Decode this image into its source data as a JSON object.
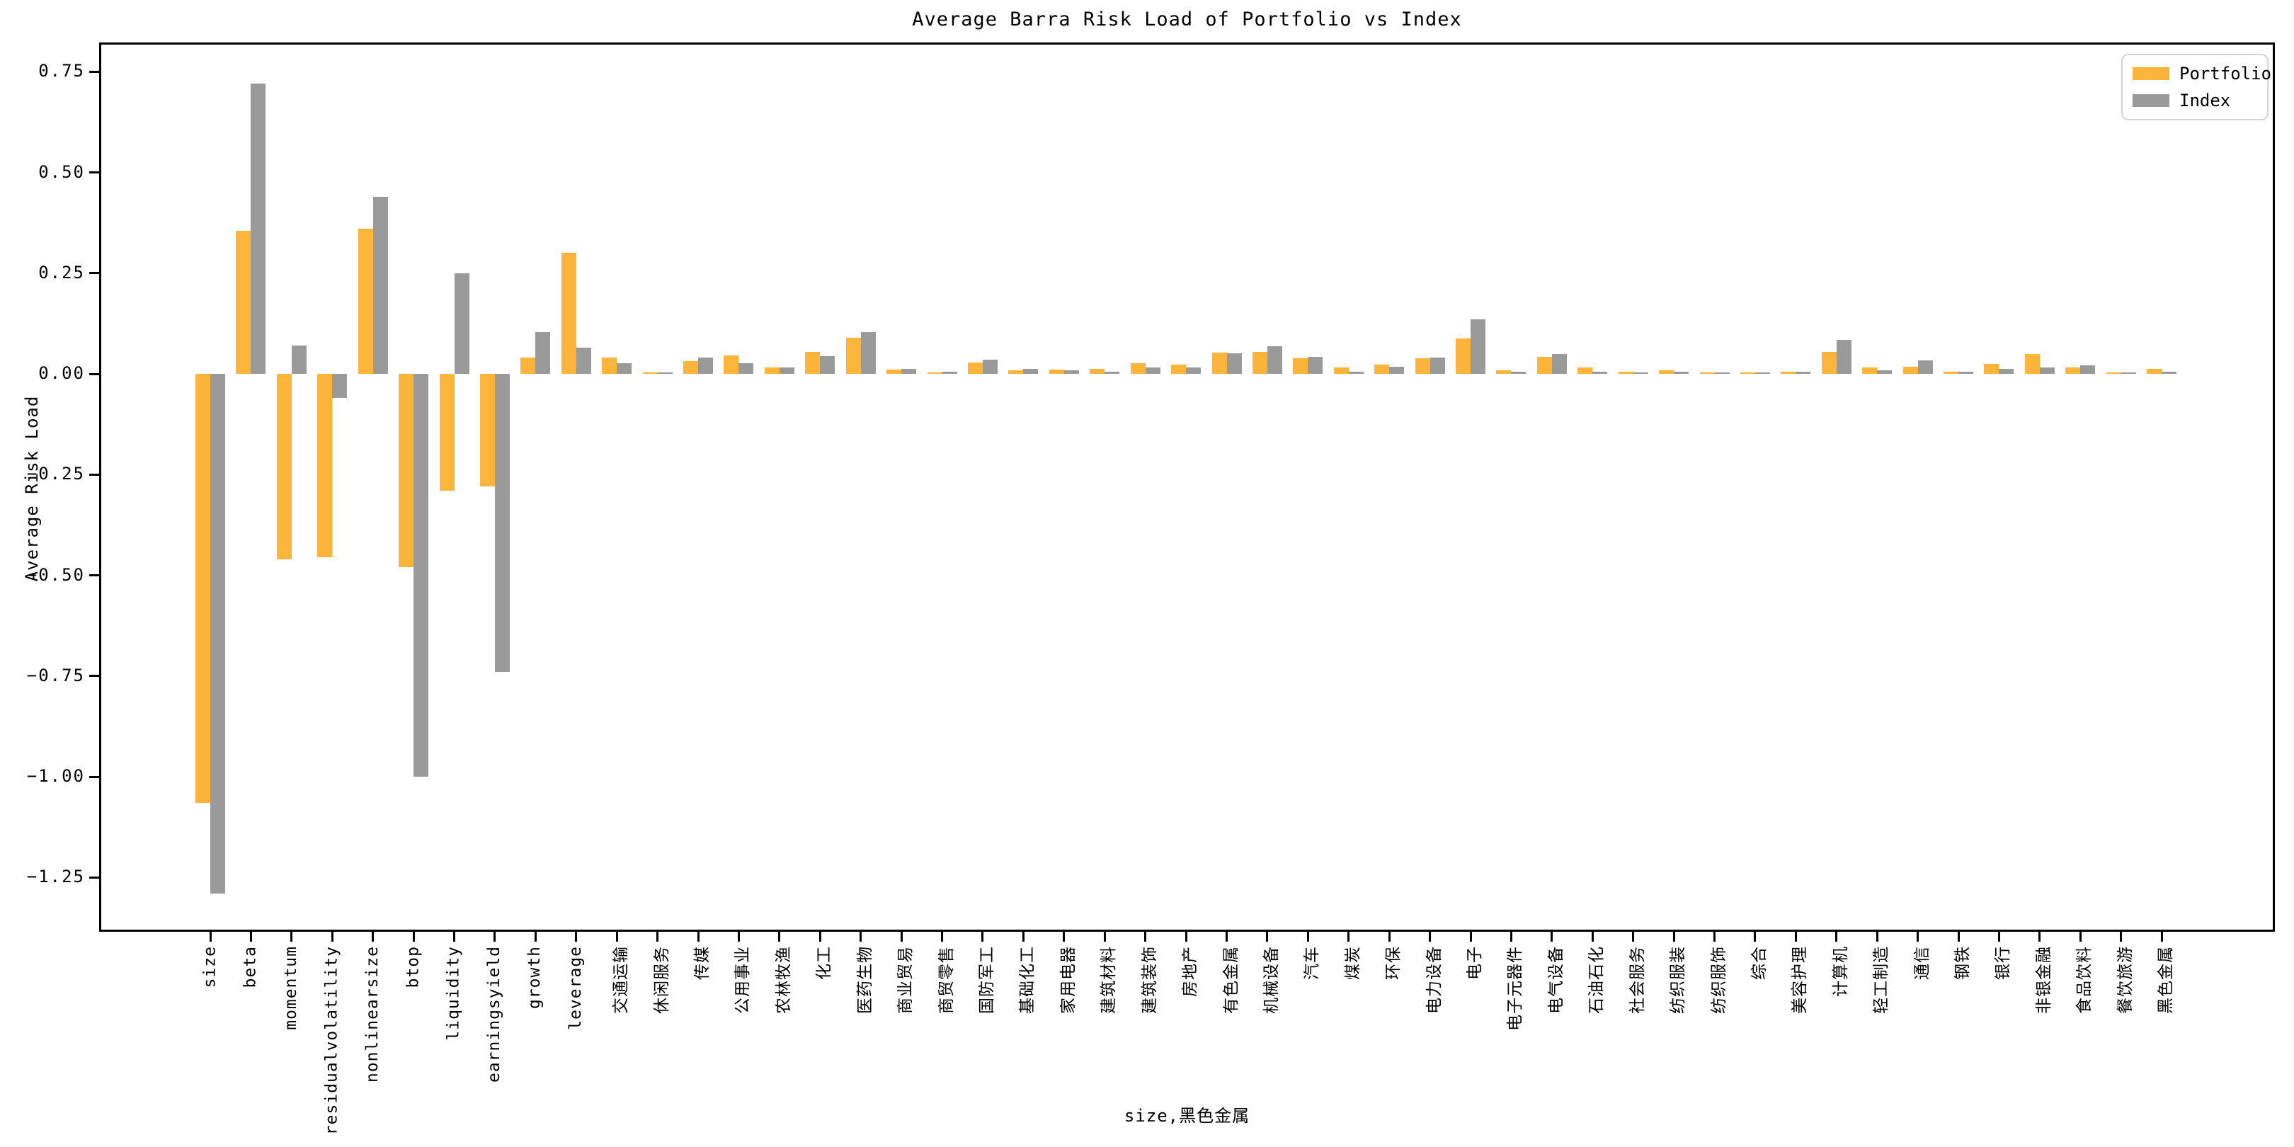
{
  "chart_data": {
    "type": "bar",
    "title": "Average Barra Risk Load of Portfolio vs Index",
    "ylabel": "Average Risk Load",
    "xlabel": "size,黑色金属",
    "grid": false,
    "legend_position": "upper right",
    "ylim": [
      -1.385,
      0.8225
    ],
    "yticks": [
      0.75,
      0.5,
      0.25,
      0.0,
      -0.25,
      -0.5,
      -0.75,
      -1.0,
      -1.25
    ],
    "ytick_labels": [
      "0.75",
      "0.50",
      "0.25",
      "0.00",
      "−0.25",
      "−0.50",
      "−0.75",
      "−1.00",
      "−1.25"
    ],
    "categories": [
      "size",
      "beta",
      "momentum",
      "residualvolatility",
      "nonlinearsize",
      "btop",
      "liquidity",
      "earningsyield",
      "growth",
      "leverage",
      "交通运输",
      "休闲服务",
      "传媒",
      "公用事业",
      "农林牧渔",
      "化工",
      "医药生物",
      "商业贸易",
      "商贸零售",
      "国防军工",
      "基础化工",
      "家用电器",
      "建筑材料",
      "建筑装饰",
      "房地产",
      "有色金属",
      "机械设备",
      "汽车",
      "煤炭",
      "环保",
      "电力设备",
      "电子",
      "电子元器件",
      "电气设备",
      "石油石化",
      "社会服务",
      "纺织服装",
      "纺织服饰",
      "综合",
      "美容护理",
      "计算机",
      "轻工制造",
      "通信",
      "钢铁",
      "银行",
      "非银金融",
      "食品饮料",
      "餐饮旅游",
      "黑色金属"
    ],
    "series": [
      {
        "name": "Portfolio",
        "color": "#FDB43B",
        "values": [
          -1.065,
          0.355,
          -0.46,
          -0.455,
          0.36,
          -0.48,
          -0.29,
          -0.28,
          0.04,
          0.3,
          0.04,
          0.003,
          0.031,
          0.046,
          0.015,
          0.054,
          0.089,
          0.011,
          0.004,
          0.028,
          0.009,
          0.011,
          0.013,
          0.027,
          0.023,
          0.052,
          0.055,
          0.039,
          0.016,
          0.022,
          0.039,
          0.087,
          0.008,
          0.042,
          0.016,
          0.006,
          0.008,
          0.003,
          0.001,
          0.006,
          0.054,
          0.016,
          0.018,
          0.005,
          0.025,
          0.049,
          0.015,
          0.001,
          0.012
        ]
      },
      {
        "name": "Index",
        "color": "#9A9A9A",
        "values": [
          -1.29,
          0.72,
          0.07,
          -0.06,
          0.44,
          -1.0,
          0.25,
          -0.74,
          0.103,
          0.065,
          0.026,
          0.001,
          0.041,
          0.027,
          0.016,
          0.044,
          0.103,
          0.013,
          0.006,
          0.036,
          0.013,
          0.009,
          0.006,
          0.016,
          0.016,
          0.051,
          0.068,
          0.043,
          0.006,
          0.017,
          0.041,
          0.136,
          0.006,
          0.05,
          0.005,
          0.004,
          0.006,
          0.004,
          0.002,
          0.005,
          0.084,
          0.008,
          0.034,
          0.005,
          0.013,
          0.015,
          0.021,
          0.001,
          0.005
        ]
      }
    ]
  },
  "colors": {
    "portfolio": "#FDB43B",
    "index": "#9A9A9A",
    "axis": "#000000",
    "legend_border": "#d4d4d4",
    "background": "#ffffff"
  }
}
